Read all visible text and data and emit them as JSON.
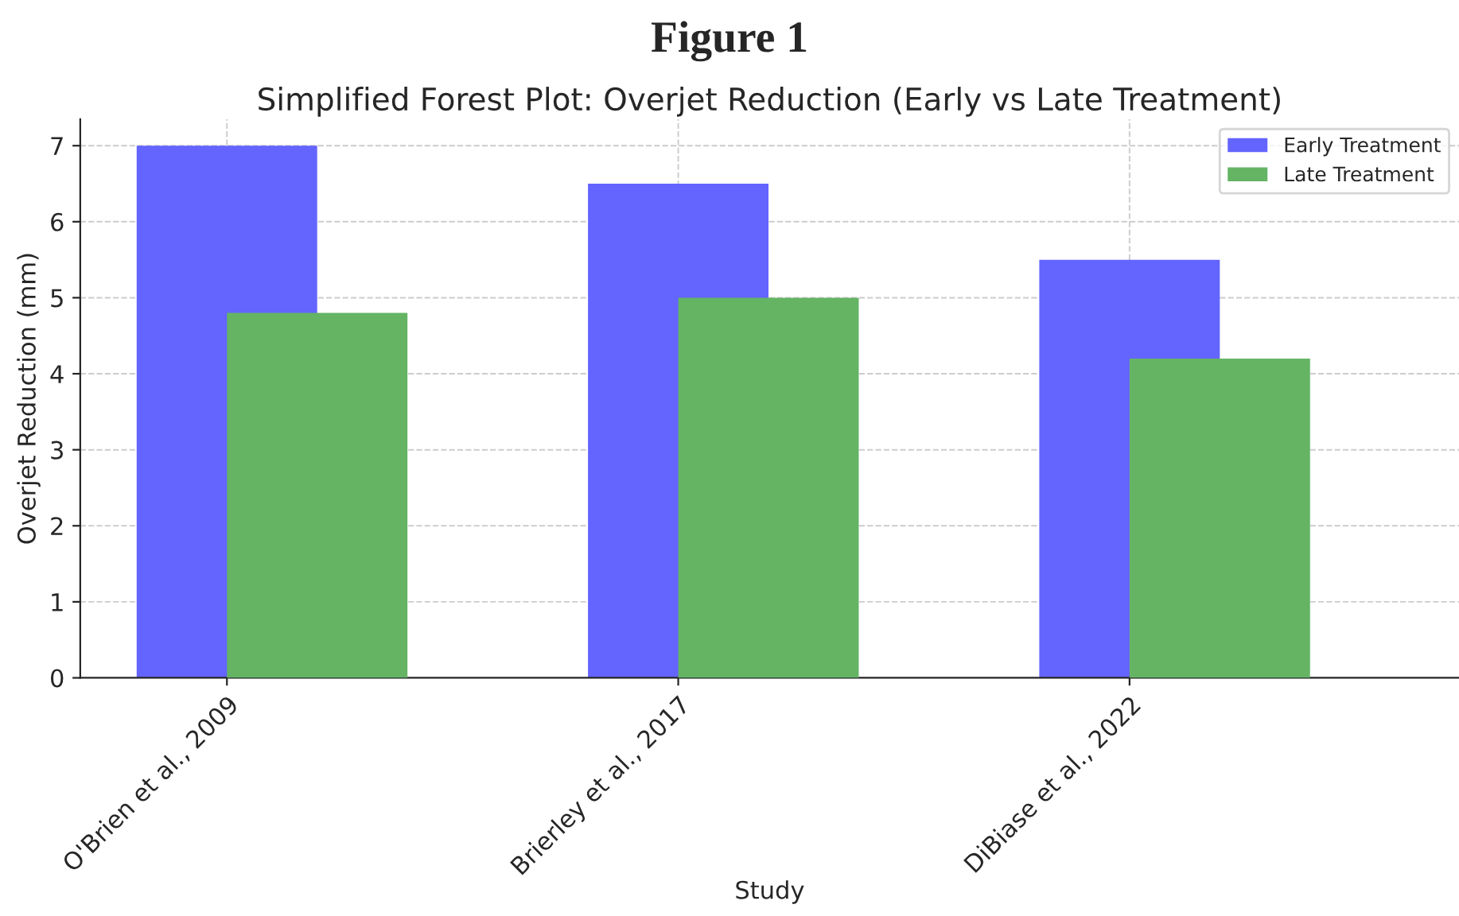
{
  "chart_data": {
    "type": "bar",
    "title": "Figure 1",
    "subtitle": "Simplified Forest Plot: Overjet Reduction (Early vs Late Treatment)",
    "xlabel": "Study",
    "ylabel": "Overjet Reduction (mm)",
    "categories": [
      "O'Brien et al., 2009",
      "Brierley et al., 2017",
      "DiBiase et al., 2022"
    ],
    "series": [
      {
        "name": "Early Treatment",
        "color": "#6464ff",
        "values": [
          7.0,
          6.5,
          5.5
        ]
      },
      {
        "name": "Late Treatment",
        "color": "#64b464",
        "values": [
          4.8,
          5.0,
          4.2
        ]
      }
    ],
    "ylim": [
      0,
      7.35
    ],
    "yticks": [
      0,
      1,
      2,
      3,
      4,
      5,
      6,
      7
    ],
    "grid": true,
    "legend": "top right"
  }
}
